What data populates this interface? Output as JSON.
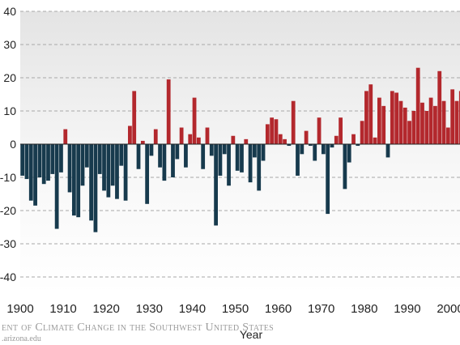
{
  "chart_data": {
    "type": "bar",
    "title": "",
    "xlabel": "Year",
    "ylabel": "",
    "ylim": [
      -45,
      40
    ],
    "y_ticks": [
      "-40",
      "-30",
      "-20",
      "-10",
      "0",
      "10",
      "20",
      "30",
      "40"
    ],
    "x_ticks": [
      "1900",
      "1910",
      "1920",
      "1930",
      "1940",
      "1950",
      "1960",
      "1970",
      "1980",
      "1990",
      "2000"
    ],
    "grid": true,
    "colors": {
      "positive": "#b3282d",
      "negative": "#173a4d",
      "plot_background": "#ececec"
    },
    "x": [
      1901,
      1902,
      1903,
      1904,
      1905,
      1906,
      1907,
      1908,
      1909,
      1910,
      1911,
      1912,
      1913,
      1914,
      1915,
      1916,
      1917,
      1918,
      1919,
      1920,
      1921,
      1922,
      1923,
      1924,
      1925,
      1926,
      1927,
      1928,
      1929,
      1930,
      1931,
      1932,
      1933,
      1934,
      1935,
      1936,
      1937,
      1938,
      1939,
      1940,
      1941,
      1942,
      1943,
      1944,
      1945,
      1946,
      1947,
      1948,
      1949,
      1950,
      1951,
      1952,
      1953,
      1954,
      1955,
      1956,
      1957,
      1958,
      1959,
      1960,
      1961,
      1962,
      1963,
      1964,
      1965,
      1966,
      1967,
      1968,
      1969,
      1970,
      1971,
      1972,
      1973,
      1974,
      1975,
      1976,
      1977,
      1978,
      1979,
      1980,
      1981,
      1982,
      1983,
      1984,
      1985,
      1986,
      1987,
      1988,
      1989,
      1990,
      1991,
      1992,
      1993,
      1994,
      1995,
      1996,
      1997,
      1998,
      1999,
      2000,
      2001,
      2002,
      2003
    ],
    "values": [
      -9.5,
      -10.5,
      -17,
      -18.5,
      -10,
      -12,
      -11,
      -9,
      -25.5,
      -8.5,
      4.5,
      -14.5,
      -21.5,
      -22,
      -12.5,
      -7,
      -23,
      -26.5,
      -9,
      -14,
      -16,
      -12.5,
      -16.5,
      -6.5,
      -17,
      5.5,
      16,
      -7.5,
      1,
      -18,
      -3.5,
      4.5,
      -7,
      -11,
      19.5,
      -10,
      -4.5,
      5,
      -7,
      3,
      14,
      2,
      -7.5,
      5,
      -3.5,
      -24.5,
      -9.5,
      -3,
      -12.5,
      2.5,
      -8,
      -8.5,
      1.5,
      -11.5,
      -4,
      -14,
      -5,
      6,
      8,
      7.5,
      3,
      1.5,
      -0.5,
      13,
      -9.5,
      -3,
      4,
      -0.5,
      -5,
      8,
      -3,
      -21,
      -1,
      2.5,
      8,
      -13.5,
      -5.5,
      3,
      -0.5,
      7,
      16,
      18,
      2,
      14,
      11.5,
      -4,
      16,
      15.5,
      13,
      11,
      7,
      10,
      23,
      12.5,
      10,
      14,
      11.5,
      22,
      13,
      5,
      16.5,
      13,
      16
    ]
  },
  "credit": {
    "line1": "ent of Climate Change in the Southwest United States",
    "line2": ".arizona.edu"
  }
}
